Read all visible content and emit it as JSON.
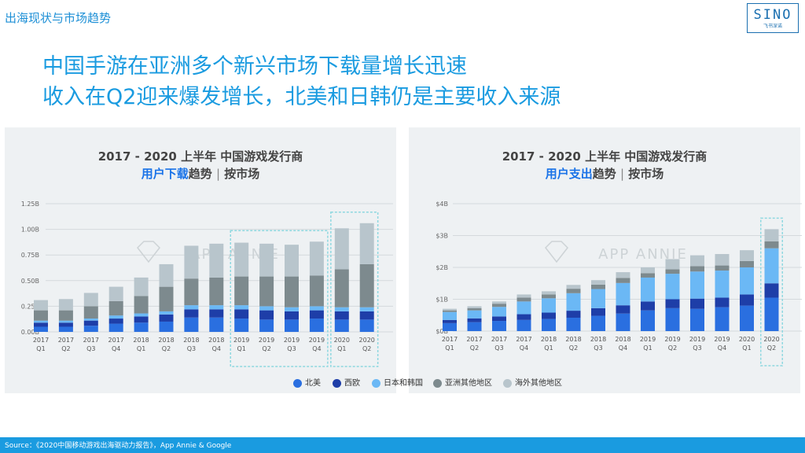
{
  "header": {
    "section_title": "出海现状与市场趋势",
    "logo_text": "SINO",
    "logo_subtext": "飞书深诺"
  },
  "headline": {
    "line1": "中国手游在亚洲多个新兴市场下载量增长迅速",
    "line2": "收入在Q2迎来爆发增长，北美和日韩仍是主要收入来源"
  },
  "colors": {
    "north_america": "#2a6fe0",
    "western_europe": "#1e3ea8",
    "japan_korea": "#6bb8f5",
    "other_asia": "#7d8a8e",
    "other_overseas": "#b8c5cc",
    "accent": "#1a9be0",
    "highlight_box": "#8ed8e0"
  },
  "chart_data": [
    {
      "type": "bar",
      "stacked": true,
      "title": "2017 - 2020 上半年 中国游戏发行商",
      "subtitle_highlight": "用户下载",
      "subtitle_rest": "趋势",
      "subtitle_sep": "|",
      "subtitle_tail": "按市场",
      "watermark": "APP ANNIE",
      "categories": [
        [
          "2017",
          "Q1"
        ],
        [
          "2017",
          "Q2"
        ],
        [
          "2017",
          "Q3"
        ],
        [
          "2017",
          "Q4"
        ],
        [
          "2018",
          "Q1"
        ],
        [
          "2018",
          "Q2"
        ],
        [
          "2018",
          "Q3"
        ],
        [
          "2018",
          "Q4"
        ],
        [
          "2019",
          "Q1"
        ],
        [
          "2019",
          "Q2"
        ],
        [
          "2019",
          "Q3"
        ],
        [
          "2019",
          "Q4"
        ],
        [
          "2020",
          "Q1"
        ],
        [
          "2020",
          "Q2"
        ]
      ],
      "ylim": [
        0,
        1.25
      ],
      "yticks": [
        0,
        0.25,
        0.5,
        0.75,
        1.0,
        1.25
      ],
      "ytick_labels": [
        "0.00B",
        "0.25B",
        "0.50B",
        "0.75B",
        "1.00B",
        "1.25B"
      ],
      "series": [
        {
          "name": "北美",
          "values": [
            0.05,
            0.05,
            0.06,
            0.08,
            0.09,
            0.1,
            0.14,
            0.14,
            0.13,
            0.12,
            0.12,
            0.13,
            0.12,
            0.12
          ]
        },
        {
          "name": "西欧",
          "values": [
            0.04,
            0.04,
            0.05,
            0.05,
            0.06,
            0.07,
            0.08,
            0.08,
            0.09,
            0.09,
            0.08,
            0.08,
            0.08,
            0.08
          ]
        },
        {
          "name": "日本和韩国",
          "values": [
            0.02,
            0.02,
            0.02,
            0.03,
            0.03,
            0.03,
            0.04,
            0.04,
            0.04,
            0.04,
            0.04,
            0.04,
            0.04,
            0.04
          ]
        },
        {
          "name": "亚洲其他地区",
          "values": [
            0.1,
            0.1,
            0.12,
            0.14,
            0.17,
            0.24,
            0.26,
            0.27,
            0.28,
            0.29,
            0.3,
            0.3,
            0.37,
            0.42
          ]
        },
        {
          "name": "海外其他地区",
          "values": [
            0.1,
            0.11,
            0.13,
            0.14,
            0.18,
            0.22,
            0.32,
            0.33,
            0.33,
            0.32,
            0.31,
            0.33,
            0.4,
            0.4
          ]
        }
      ],
      "highlight_groups": [
        [
          8,
          11
        ],
        [
          12,
          13
        ]
      ]
    },
    {
      "type": "bar",
      "stacked": true,
      "title": "2017 - 2020 上半年 中国游戏发行商",
      "subtitle_highlight": "用户支出",
      "subtitle_rest": "趋势",
      "subtitle_sep": "|",
      "subtitle_tail": "按市场",
      "watermark": "APP ANNIE",
      "categories": [
        [
          "2017",
          "Q1"
        ],
        [
          "2017",
          "Q2"
        ],
        [
          "2017",
          "Q3"
        ],
        [
          "2017",
          "Q4"
        ],
        [
          "2018",
          "Q1"
        ],
        [
          "2018",
          "Q2"
        ],
        [
          "2018",
          "Q3"
        ],
        [
          "2018",
          "Q4"
        ],
        [
          "2019",
          "Q1"
        ],
        [
          "2019",
          "Q2"
        ],
        [
          "2019",
          "Q3"
        ],
        [
          "2019",
          "Q4"
        ],
        [
          "2020",
          "Q1"
        ],
        [
          "2020",
          "Q2"
        ]
      ],
      "ylim": [
        0,
        4
      ],
      "yticks": [
        0,
        1,
        2,
        3,
        4
      ],
      "ytick_labels": [
        "$0B",
        "$1B",
        "$2B",
        "$3B",
        "$4B"
      ],
      "series": [
        {
          "name": "北美",
          "values": [
            0.25,
            0.28,
            0.32,
            0.35,
            0.38,
            0.42,
            0.48,
            0.55,
            0.65,
            0.72,
            0.7,
            0.75,
            0.8,
            1.05
          ]
        },
        {
          "name": "西欧",
          "values": [
            0.1,
            0.12,
            0.14,
            0.18,
            0.2,
            0.22,
            0.24,
            0.26,
            0.28,
            0.28,
            0.32,
            0.3,
            0.35,
            0.45
          ]
        },
        {
          "name": "日本和韩国",
          "values": [
            0.25,
            0.25,
            0.3,
            0.4,
            0.45,
            0.55,
            0.6,
            0.7,
            0.75,
            0.8,
            0.85,
            0.85,
            0.85,
            1.1
          ]
        },
        {
          "name": "亚洲其他地区",
          "values": [
            0.05,
            0.07,
            0.1,
            0.12,
            0.12,
            0.14,
            0.14,
            0.16,
            0.14,
            0.14,
            0.17,
            0.16,
            0.2,
            0.22
          ]
        },
        {
          "name": "海外其他地区",
          "values": [
            0.05,
            0.06,
            0.07,
            0.1,
            0.1,
            0.12,
            0.14,
            0.18,
            0.18,
            0.32,
            0.34,
            0.36,
            0.34,
            0.38
          ]
        }
      ],
      "highlight_groups": [
        [
          13,
          13
        ]
      ]
    }
  ],
  "legend": [
    "北美",
    "西欧",
    "日本和韩国",
    "亚洲其他地区",
    "海外其他地区"
  ],
  "footer": {
    "source": "Source：《2020中国移动游戏出海驱动力报告》，App Annie & Google"
  }
}
